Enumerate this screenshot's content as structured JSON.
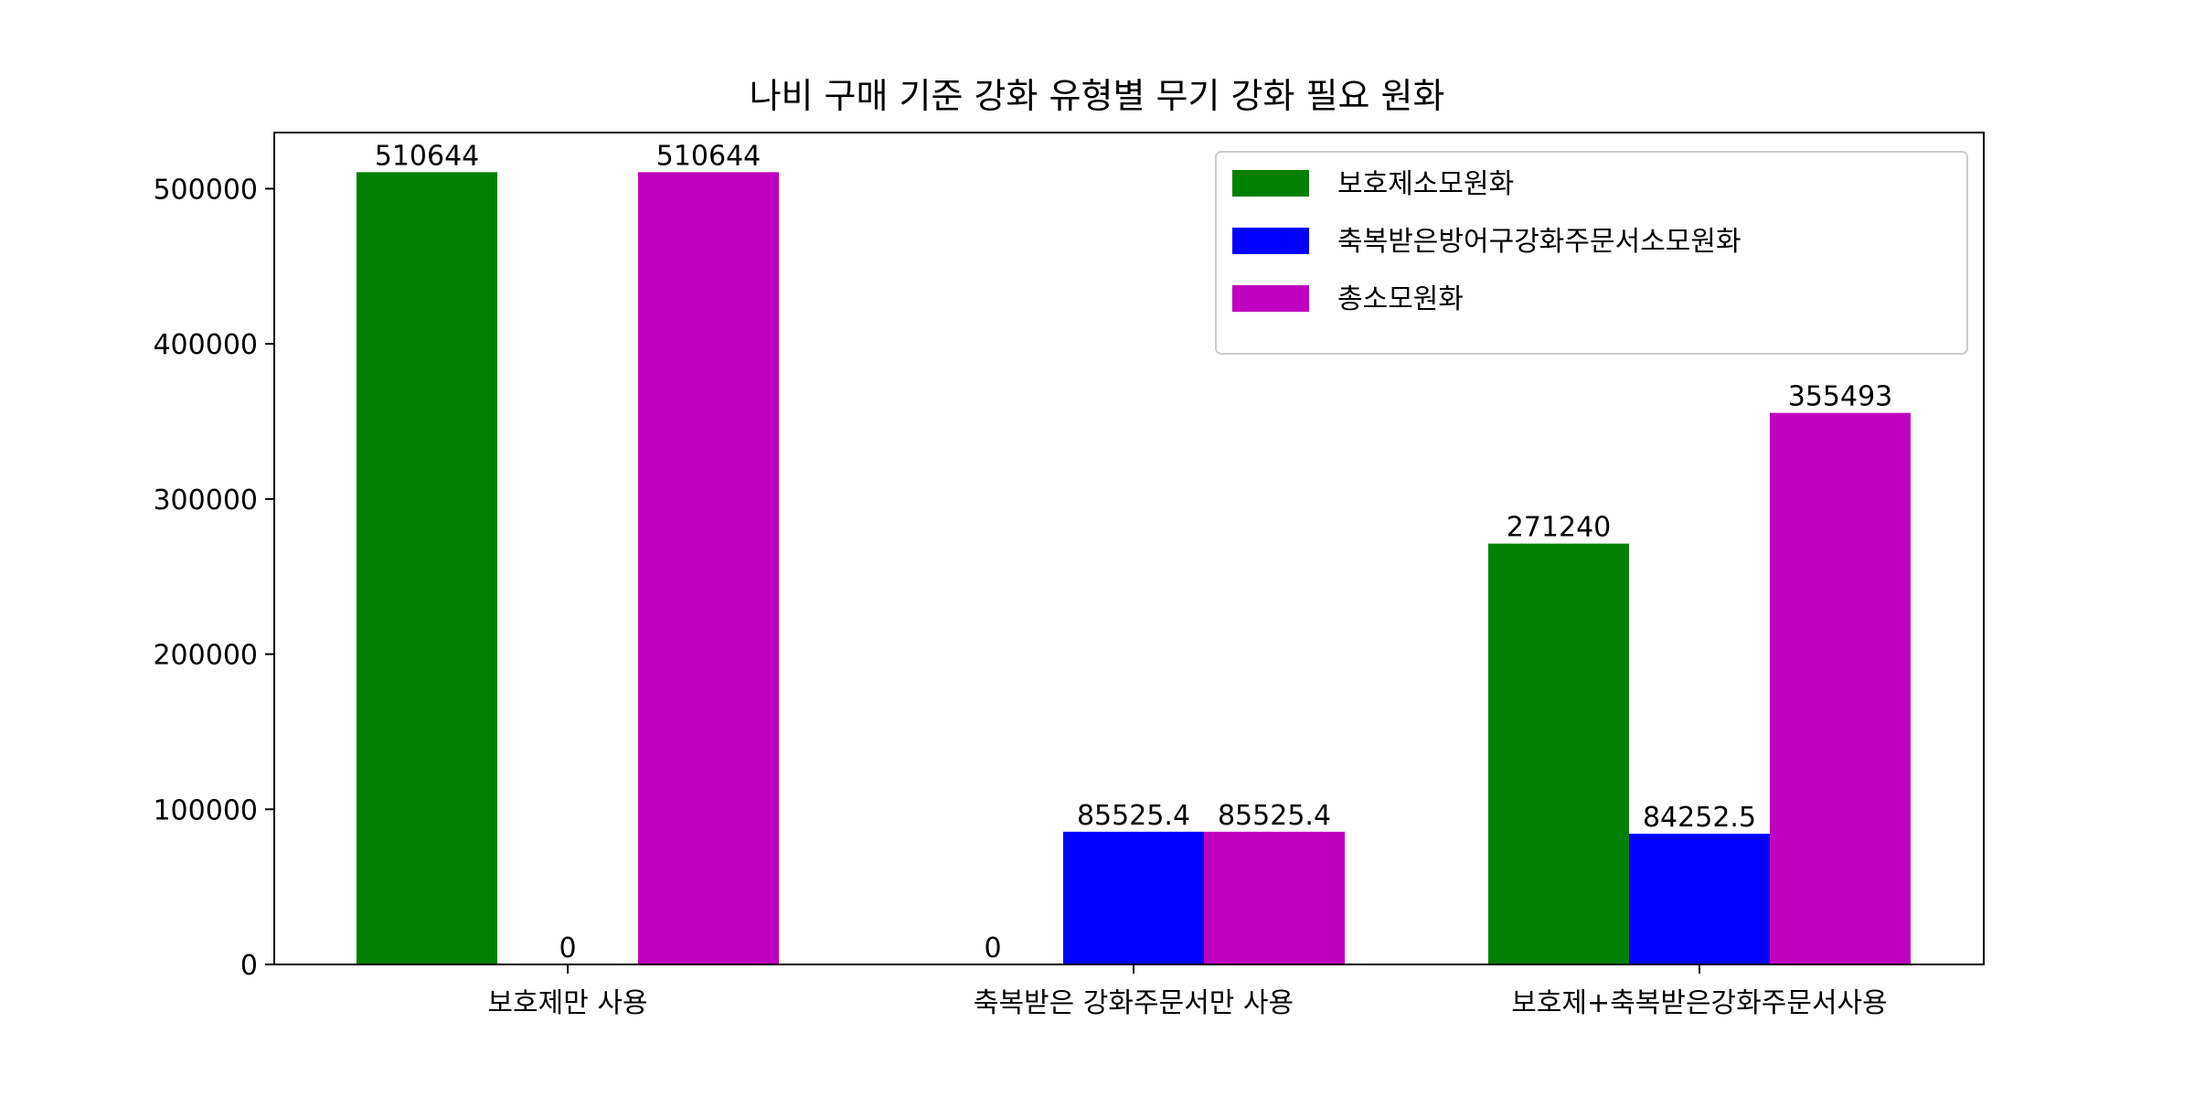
{
  "chart_data": {
    "type": "bar",
    "title": "나비 구매 기준 강화 유형별 무기 강화 필요 원화",
    "xlabel": "",
    "ylabel": "",
    "categories": [
      "보호제만 사용",
      "축복받은 강화주문서만 사용",
      "보호제+축복받은강화주문서사용"
    ],
    "series": [
      {
        "name": "보호제소모원화",
        "color": "#008000",
        "values": [
          510644,
          0,
          271240
        ],
        "labels": [
          "510644",
          "0",
          "271240"
        ]
      },
      {
        "name": "축복받은방어구강화주문서소모원화",
        "color": "#0000ff",
        "values": [
          0,
          85525.4,
          84252.5
        ],
        "labels": [
          "0",
          "85525.4",
          "84252.5"
        ]
      },
      {
        "name": "총소모원화",
        "color": "#bf00bf",
        "values": [
          510644,
          85525.4,
          355493
        ],
        "labels": [
          "510644",
          "85525.4",
          "355493"
        ]
      }
    ],
    "yticks": [
      0,
      100000,
      200000,
      300000,
      400000,
      500000
    ],
    "ylim": [
      0,
      536176
    ],
    "grid": false,
    "legend_position": "top-right"
  }
}
